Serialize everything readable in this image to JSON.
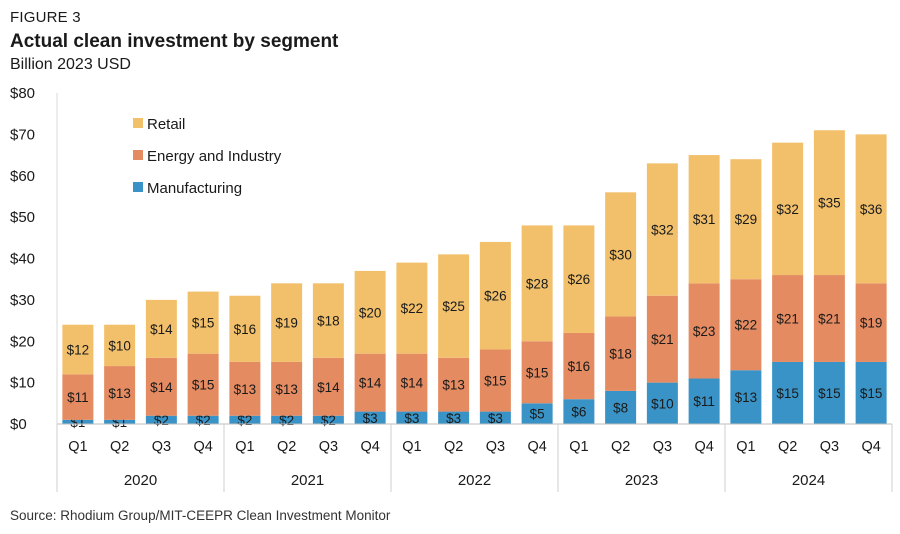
{
  "figure_label": "FIGURE 3",
  "title": "Actual clean investment by segment",
  "subtitle": "Billion 2023 USD",
  "source": "Source: Rhodium Group/MIT-CEEPR Clean Investment Monitor",
  "chart_data": {
    "type": "bar",
    "stacked": true,
    "categories": [
      "Q1",
      "Q2",
      "Q3",
      "Q4",
      "Q1",
      "Q2",
      "Q3",
      "Q4",
      "Q1",
      "Q2",
      "Q3",
      "Q4",
      "Q1",
      "Q2",
      "Q3",
      "Q4",
      "Q1",
      "Q2",
      "Q3",
      "Q4"
    ],
    "years": [
      "2020",
      "2021",
      "2022",
      "2023",
      "2024"
    ],
    "series": [
      {
        "name": "Manufacturing",
        "color": "#3a93c6",
        "values": [
          1,
          1,
          2,
          2,
          2,
          2,
          2,
          3,
          3,
          3,
          3,
          5,
          6,
          8,
          10,
          11,
          13,
          15,
          15,
          15
        ]
      },
      {
        "name": "Energy and Industry",
        "color": "#e58b62",
        "values": [
          11,
          13,
          14,
          15,
          13,
          13,
          14,
          14,
          14,
          13,
          15,
          15,
          16,
          18,
          21,
          23,
          22,
          21,
          21,
          19
        ]
      },
      {
        "name": "Retail",
        "color": "#f2c06b",
        "values": [
          12,
          10,
          14,
          15,
          16,
          19,
          18,
          20,
          22,
          25,
          26,
          28,
          26,
          30,
          32,
          31,
          29,
          32,
          35,
          36
        ]
      }
    ],
    "data_labels": [
      [
        "$1",
        "$1",
        "$2",
        "$2",
        "$2",
        "$2",
        "$2",
        "$3",
        "$3",
        "$3",
        "$3",
        "$5",
        "$6",
        "$8",
        "$10",
        "$11",
        "$13",
        "$15",
        "$15",
        "$15"
      ],
      [
        "$11",
        "$13",
        "$14",
        "$15",
        "$13",
        "$13",
        "$14",
        "$14",
        "$14",
        "$13",
        "$15",
        "$15",
        "$16",
        "$18",
        "$21",
        "$23",
        "$22",
        "$21",
        "$21",
        "$19"
      ],
      [
        "$12",
        "$10",
        "$14",
        "$15",
        "$16",
        "$19",
        "$18",
        "$20",
        "$22",
        "$25",
        "$26",
        "$28",
        "$26",
        "$30",
        "$32",
        "$31",
        "$29",
        "$32",
        "$35",
        "$36"
      ]
    ],
    "ylim": [
      0,
      80
    ],
    "yticks": [
      "$0",
      "$10",
      "$20",
      "$30",
      "$40",
      "$50",
      "$60",
      "$70",
      "$80"
    ],
    "legend": [
      "Retail",
      "Energy and Industry",
      "Manufacturing"
    ],
    "legend_placement": "top-left",
    "grid": false
  }
}
